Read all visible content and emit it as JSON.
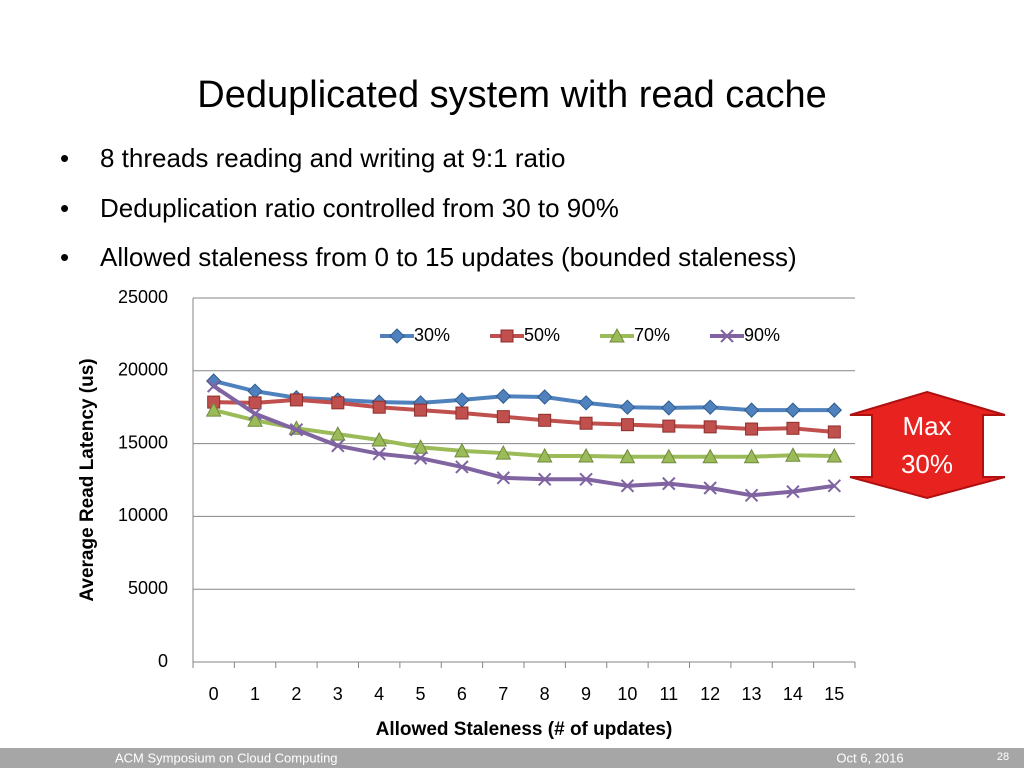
{
  "slide_title": "Deduplicated system with read cache",
  "bullets": [
    "8 threads reading and writing at 9:1 ratio",
    "Deduplication ratio controlled from 30 to 90%",
    "Allowed staleness from 0 to 15 updates (bounded staleness)"
  ],
  "chart_data": {
    "type": "line",
    "x_label": "Allowed Staleness (# of updates)",
    "y_label": "Average Read Latency (us)",
    "categories": [
      "0",
      "1",
      "2",
      "3",
      "4",
      "5",
      "6",
      "7",
      "8",
      "9",
      "10",
      "11",
      "12",
      "13",
      "14",
      "15"
    ],
    "ylim": [
      0,
      25000
    ],
    "yticks": [
      0,
      5000,
      10000,
      15000,
      20000,
      25000
    ],
    "grid": true,
    "legend": "top",
    "series": [
      {
        "name": "30%",
        "color": "#4f81bd",
        "marker": "diamond",
        "values": [
          19300,
          18600,
          18150,
          18000,
          17850,
          17800,
          18000,
          18250,
          18200,
          17800,
          17500,
          17450,
          17500,
          17300,
          17300,
          17300
        ]
      },
      {
        "name": "50%",
        "color": "#c0504d",
        "marker": "square",
        "values": [
          17850,
          17800,
          18000,
          17800,
          17500,
          17300,
          17100,
          16850,
          16600,
          16400,
          16300,
          16200,
          16150,
          16000,
          16050,
          15800
        ]
      },
      {
        "name": "70%",
        "color": "#9bbb59",
        "marker": "triangle",
        "values": [
          17300,
          16600,
          16050,
          15650,
          15250,
          14750,
          14500,
          14350,
          14150,
          14150,
          14100,
          14100,
          14100,
          14100,
          14200,
          14150
        ]
      },
      {
        "name": "90%",
        "color": "#8064a2",
        "marker": "x",
        "values": [
          18950,
          17050,
          15950,
          14850,
          14300,
          14000,
          13400,
          12650,
          12550,
          12550,
          12100,
          12250,
          11950,
          11450,
          11700,
          12100
        ]
      }
    ]
  },
  "callout": [
    "Max",
    "30%"
  ],
  "footer": {
    "venue": "ACM Symposium on Cloud Computing",
    "date": "Oct 6, 2016",
    "page": "28"
  }
}
